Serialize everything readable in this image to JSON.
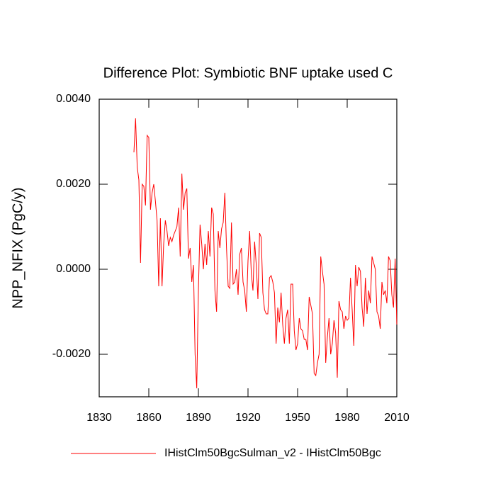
{
  "chart_data": {
    "type": "line",
    "title": "Difference Plot: Symbiotic BNF uptake used C",
    "y_label": "NPP_NFIX  (PgC/y)",
    "x": [
      1851,
      1852,
      1853,
      1854,
      1855,
      1856,
      1857,
      1858,
      1859,
      1860,
      1861,
      1862,
      1863,
      1864,
      1865,
      1866,
      1867,
      1868,
      1869,
      1870,
      1871,
      1872,
      1873,
      1874,
      1875,
      1876,
      1877,
      1878,
      1879,
      1880,
      1881,
      1882,
      1883,
      1884,
      1885,
      1886,
      1887,
      1888,
      1889,
      1890,
      1891,
      1892,
      1893,
      1894,
      1895,
      1896,
      1897,
      1898,
      1899,
      1900,
      1901,
      1902,
      1903,
      1904,
      1905,
      1906,
      1907,
      1908,
      1909,
      1910,
      1911,
      1912,
      1913,
      1914,
      1915,
      1916,
      1917,
      1918,
      1919,
      1920,
      1921,
      1922,
      1923,
      1924,
      1925,
      1926,
      1927,
      1928,
      1929,
      1930,
      1931,
      1932,
      1933,
      1934,
      1935,
      1936,
      1937,
      1938,
      1939,
      1940,
      1941,
      1942,
      1943,
      1944,
      1945,
      1946,
      1947,
      1948,
      1949,
      1950,
      1951,
      1952,
      1953,
      1954,
      1955,
      1956,
      1957,
      1958,
      1959,
      1960,
      1961,
      1962,
      1963,
      1964,
      1965,
      1966,
      1967,
      1968,
      1969,
      1970,
      1971,
      1972,
      1973,
      1974,
      1975,
      1976,
      1977,
      1978,
      1979,
      1980,
      1981,
      1982,
      1983,
      1984,
      1985,
      1986,
      1987,
      1988,
      1989,
      1990,
      1991,
      1992,
      1993,
      1994,
      1995,
      1996,
      1997,
      1998,
      1999,
      2000,
      2001,
      2002,
      2003,
      2004,
      2005,
      2006,
      2007,
      2008,
      2009,
      2010
    ],
    "series": [
      {
        "name": "IHistClm50BgcSulman_v2 - IHistClm50Bgc",
        "color": "#ff0000",
        "values": [
          0.00275,
          0.00355,
          0.0024,
          0.0021,
          0.00015,
          0.002,
          0.00195,
          0.0015,
          0.00315,
          0.0031,
          0.0014,
          0.0018,
          0.002,
          0.0016,
          0.00115,
          -0.0004,
          0.0012,
          -0.0004,
          0.0006,
          0.00115,
          0.0009,
          0.00055,
          0.00075,
          0.00065,
          0.0008,
          0.0009,
          0.001,
          0.00145,
          0.0003,
          0.00225,
          0.0014,
          0.0018,
          0.0019,
          0.00025,
          0.0005,
          -0.0003,
          0.0001,
          -0.002,
          -0.0028,
          -0.0005,
          0.00105,
          0.0006,
          0.0,
          0.0006,
          0.0001,
          0.0009,
          0.0003,
          0.00145,
          0.0013,
          -0.0005,
          -0.001,
          0.0009,
          0.0005,
          0.00095,
          0.0011,
          0.0018,
          0.0005,
          -0.0004,
          -0.00045,
          0.0011,
          -0.00035,
          -0.0003,
          0.0,
          -0.0006,
          0.00035,
          0.0005,
          -0.0003,
          -0.0005,
          -0.001,
          0.0002,
          0.0009,
          -0.0001,
          -0.0005,
          0.00065,
          0.0001,
          -0.0007,
          0.00085,
          0.00075,
          -0.00055,
          -0.00095,
          -0.00105,
          -0.00105,
          -0.0002,
          -0.00015,
          -0.0003,
          -0.00055,
          -0.00175,
          -0.0009,
          -0.00125,
          -0.00055,
          -0.0013,
          -0.00175,
          -0.00115,
          -0.00095,
          -0.00175,
          -0.00035,
          -0.00035,
          -0.00145,
          -0.0019,
          -0.00175,
          -0.00115,
          -0.0014,
          -0.00145,
          -0.00165,
          -0.00165,
          -0.0019,
          -0.00065,
          -0.00085,
          -0.00105,
          -0.00245,
          -0.0025,
          -0.0022,
          -0.002,
          0.0003,
          -5e-05,
          -0.00035,
          -0.0022,
          -0.0016,
          -0.00115,
          -0.002,
          -0.00175,
          -0.0012,
          -0.0015,
          -0.00255,
          -0.00075,
          -0.00095,
          -0.001,
          -0.0014,
          -0.0011,
          -0.0012,
          -0.00115,
          -0.0002,
          -0.00095,
          -0.0018,
          0.0001,
          -0.0004,
          5e-05,
          -5e-05,
          -0.0009,
          -0.00135,
          -0.0002,
          -0.00105,
          -0.0005,
          -0.0008,
          0.0003,
          0.00015,
          0.0,
          -0.001,
          -0.0011,
          -0.0014,
          -0.0003,
          -0.0006,
          -0.0005,
          -0.0008,
          0.0003,
          0.0002,
          -0.0006,
          -0.0009,
          0.00025,
          -0.0013
        ]
      }
    ],
    "xlim": [
      1830,
      2010
    ],
    "xticks": [
      1830,
      1860,
      1890,
      1920,
      1950,
      1980,
      2010
    ],
    "ylim": [
      -0.003,
      0.004
    ],
    "yticks": [
      {
        "value": -0.002,
        "label": "-0.0020"
      },
      {
        "value": 0,
        "label": "0.0000"
      },
      {
        "value": 0.002,
        "label": "0.0020"
      },
      {
        "value": 0.004,
        "label": "0.0040"
      }
    ],
    "legend": "bottom"
  }
}
